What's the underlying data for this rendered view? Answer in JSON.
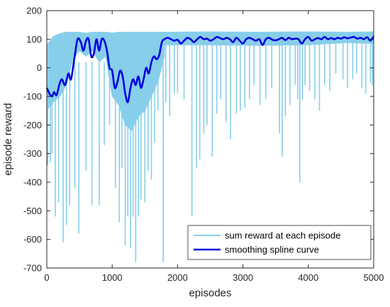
{
  "chart_data": {
    "type": "line",
    "xlabel": "episodes",
    "ylabel": "episode reward",
    "xlim": [
      0,
      5000
    ],
    "ylim": [
      -700,
      200
    ],
    "xticks": [
      0,
      1000,
      2000,
      3000,
      4000,
      5000
    ],
    "yticks": [
      -700,
      -600,
      -500,
      -400,
      -300,
      -200,
      -100,
      0,
      100,
      200
    ],
    "grid": false,
    "legend_position": "bottom-right",
    "series": [
      {
        "name": "sum reward at each episode",
        "color": "#87ceeb",
        "band": {
          "x": [
            0,
            100,
            200,
            300,
            400,
            500,
            600,
            700,
            800,
            900,
            1000,
            1100,
            1200,
            1300,
            1400,
            1500,
            1600,
            1700,
            1800
          ],
          "upper": [
            80,
            110,
            120,
            125,
            125,
            125,
            122,
            125,
            125,
            125,
            122,
            125,
            125,
            125,
            125,
            125,
            125,
            125,
            125
          ],
          "lower": [
            -150,
            -120,
            -100,
            -60,
            30,
            60,
            40,
            60,
            20,
            40,
            -100,
            -130,
            -200,
            -220,
            -170,
            -150,
            -100,
            -50,
            40
          ]
        },
        "spikes": [
          [
            15,
            -340
          ],
          [
            55,
            -330
          ],
          [
            80,
            -300
          ],
          [
            130,
            -520
          ],
          [
            180,
            -470
          ],
          [
            250,
            -610
          ],
          [
            300,
            -550
          ],
          [
            350,
            -480
          ],
          [
            430,
            -420
          ],
          [
            490,
            -580
          ],
          [
            600,
            -360
          ],
          [
            690,
            -480
          ],
          [
            800,
            -480
          ],
          [
            880,
            -270
          ],
          [
            960,
            -200
          ],
          [
            1050,
            -420
          ],
          [
            1110,
            -540
          ],
          [
            1150,
            -350
          ],
          [
            1200,
            -620
          ],
          [
            1240,
            -520
          ],
          [
            1280,
            -630
          ],
          [
            1320,
            -520
          ],
          [
            1360,
            -680
          ],
          [
            1400,
            -520
          ],
          [
            1440,
            -460
          ],
          [
            1500,
            -470
          ],
          [
            1550,
            -360
          ],
          [
            1600,
            -390
          ],
          [
            1650,
            -260
          ],
          [
            1700,
            -150
          ],
          [
            1780,
            -680
          ],
          [
            1820,
            -120
          ],
          [
            1880,
            -170
          ],
          [
            1950,
            -90
          ],
          [
            2000,
            -90
          ],
          [
            2100,
            -110
          ],
          [
            2220,
            -520
          ],
          [
            2290,
            -350
          ],
          [
            2340,
            -320
          ],
          [
            2400,
            -230
          ],
          [
            2450,
            -200
          ],
          [
            2530,
            -310
          ],
          [
            2600,
            -160
          ],
          [
            2660,
            -110
          ],
          [
            2740,
            -190
          ],
          [
            2810,
            -250
          ],
          [
            2900,
            -160
          ],
          [
            2960,
            -150
          ],
          [
            3030,
            -140
          ],
          [
            3100,
            -110
          ],
          [
            3170,
            -60
          ],
          [
            3260,
            -130
          ],
          [
            3350,
            -110
          ],
          [
            3440,
            -70
          ],
          [
            3560,
            -230
          ],
          [
            3600,
            -310
          ],
          [
            3650,
            -170
          ],
          [
            3720,
            -130
          ],
          [
            3800,
            -60
          ],
          [
            3840,
            -110
          ],
          [
            3870,
            -400
          ],
          [
            3910,
            -110
          ],
          [
            3950,
            -60
          ],
          [
            4020,
            -80
          ],
          [
            4100,
            -110
          ],
          [
            4170,
            -150
          ],
          [
            4250,
            -60
          ],
          [
            4330,
            -80
          ],
          [
            4420,
            -20
          ],
          [
            4530,
            -40
          ],
          [
            4600,
            -70
          ],
          [
            4680,
            -40
          ],
          [
            4740,
            -20
          ],
          [
            4820,
            -70
          ],
          [
            4880,
            -90
          ],
          [
            4950,
            -50
          ],
          [
            4980,
            -60
          ]
        ]
      },
      {
        "name": "smoothing spline curve",
        "color": "#0000dd",
        "x": [
          0,
          40,
          80,
          110,
          150,
          190,
          230,
          280,
          330,
          370,
          420,
          470,
          520,
          560,
          600,
          640,
          680,
          720,
          760,
          800,
          840,
          880,
          920,
          960,
          1000,
          1040,
          1080,
          1120,
          1160,
          1200,
          1240,
          1280,
          1320,
          1360,
          1400,
          1440,
          1480,
          1520,
          1560,
          1600,
          1640,
          1680,
          1720,
          1760,
          1800,
          1850,
          1900,
          1950,
          2000,
          2050,
          2100,
          2150,
          2200,
          2250,
          2300,
          2350,
          2400,
          2450,
          2500,
          2550,
          2600,
          2650,
          2700,
          2750,
          2800,
          2850,
          2900,
          2950,
          3000,
          3050,
          3100,
          3150,
          3200,
          3250,
          3300,
          3350,
          3400,
          3450,
          3500,
          3550,
          3600,
          3650,
          3700,
          3750,
          3800,
          3850,
          3900,
          3950,
          4000,
          4050,
          4100,
          4150,
          4200,
          4250,
          4300,
          4350,
          4400,
          4450,
          4500,
          4550,
          4600,
          4650,
          4700,
          4750,
          4800,
          4850,
          4900,
          4950,
          5000
        ],
        "y": [
          -70,
          -90,
          -100,
          -85,
          -95,
          -60,
          -40,
          -60,
          -20,
          -40,
          30,
          100,
          90,
          60,
          95,
          100,
          40,
          50,
          100,
          60,
          100,
          95,
          60,
          0,
          -10,
          -70,
          -50,
          -10,
          -30,
          -90,
          -120,
          -70,
          -40,
          -60,
          -30,
          -70,
          -40,
          0,
          -20,
          20,
          40,
          30,
          45,
          90,
          100,
          105,
          100,
          95,
          98,
          85,
          95,
          105,
          100,
          90,
          100,
          108,
          100,
          102,
          95,
          100,
          108,
          104,
          100,
          105,
          100,
          90,
          105,
          95,
          85,
          100,
          105,
          100,
          95,
          100,
          80,
          100,
          105,
          98,
          96,
          100,
          105,
          97,
          105,
          100,
          102,
          100,
          85,
          100,
          108,
          95,
          100,
          104,
          100,
          108,
          100,
          104,
          100,
          105,
          102,
          107,
          103,
          106,
          108,
          102,
          105,
          100,
          107,
          95,
          110
        ]
      }
    ]
  }
}
